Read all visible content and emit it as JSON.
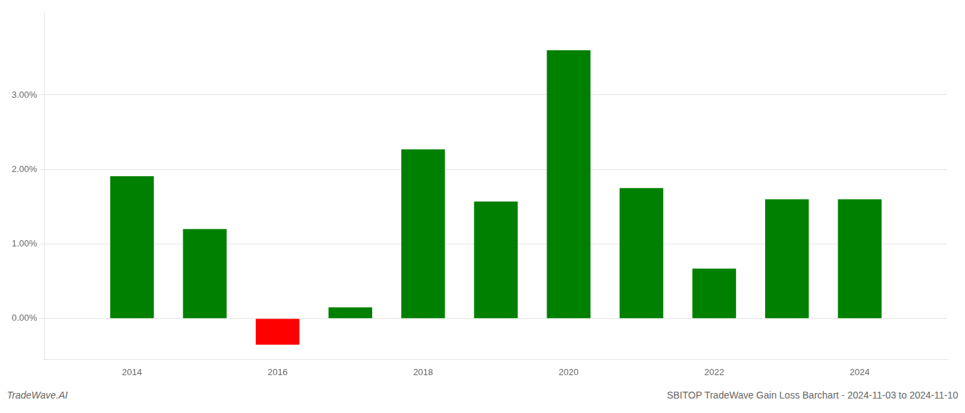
{
  "chart_data": {
    "type": "bar",
    "title": "SBITOP TradeWave Gain Loss Barchart - 2024-11-03 to 2024-11-10",
    "annotations": [
      "TradeWave.AI"
    ],
    "x": [
      2014,
      2015,
      2016,
      2017,
      2018,
      2019,
      2020,
      2021,
      2022,
      2023,
      2024
    ],
    "values": [
      1.91,
      1.2,
      -0.35,
      0.15,
      2.27,
      1.57,
      3.6,
      1.75,
      0.67,
      1.6,
      1.6
    ],
    "colors": [
      "#008000",
      "#008000",
      "#ff0000",
      "#008000",
      "#008000",
      "#008000",
      "#008000",
      "#008000",
      "#008000",
      "#008000",
      "#008000"
    ],
    "xlim": [
      2012.8,
      2025.2
    ],
    "xticks": [
      2014,
      2016,
      2018,
      2020,
      2022,
      2024
    ],
    "ylim": [
      -0.55,
      4.1
    ],
    "yticks": [
      {
        "value": 0.0,
        "label": "0.00%"
      },
      {
        "value": 1.0,
        "label": "1.00%"
      },
      {
        "value": 2.0,
        "label": "2.00%"
      },
      {
        "value": 3.0,
        "label": "3.00%"
      }
    ],
    "grid": true
  }
}
